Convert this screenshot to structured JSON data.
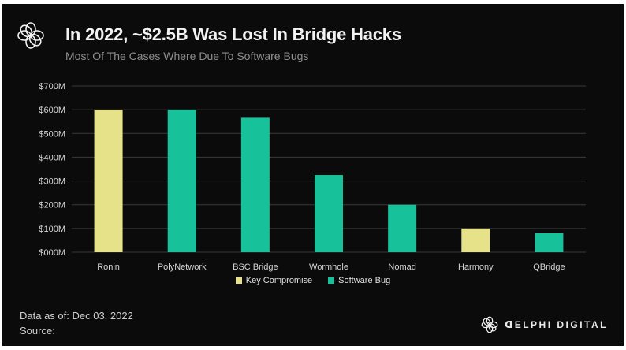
{
  "header": {
    "title": "In 2022, ~$2.5B Was Lost In Bridge Hacks",
    "subtitle": "Most Of The Cases Where Due To Software Bugs",
    "logo_icon": "delphi-flower-icon"
  },
  "footer": {
    "date_label": "Data as of: Dec 03, 2022",
    "source_label": "Source:",
    "brand_name": "DELPHI DIGITAL",
    "brand_display": "ᗡELPHI DIGITAL"
  },
  "colors": {
    "background": "#0b0b0b",
    "key_compromise": "#e5e28a",
    "software_bug": "#17c19a",
    "grid": "#3a3a3a",
    "text": "#e0e0e0"
  },
  "chart_data": {
    "type": "bar",
    "title": "In 2022, ~$2.5B Was Lost In Bridge Hacks",
    "subtitle": "Most Of The Cases Where Due To Software Bugs",
    "categories": [
      "Ronin",
      "PolyNetwork",
      "BSC Bridge",
      "Wormhole",
      "Nomad",
      "Harmony",
      "QBridge"
    ],
    "values": [
      600,
      600,
      566,
      325,
      200,
      100,
      80
    ],
    "value_unit": "$M",
    "cause": [
      "Key Compromise",
      "Software Bug",
      "Software Bug",
      "Software Bug",
      "Software Bug",
      "Key Compromise",
      "Software Bug"
    ],
    "legend": [
      {
        "name": "Key Compromise",
        "color": "#e5e28a"
      },
      {
        "name": "Software Bug",
        "color": "#17c19a"
      }
    ],
    "legend_position": "bottom-center",
    "ylim": [
      0,
      700
    ],
    "yticks": [
      0,
      100,
      200,
      300,
      400,
      500,
      600,
      700
    ],
    "ytick_labels": [
      "$000M",
      "$100M",
      "$200M",
      "$300M",
      "$400M",
      "$500M",
      "$600M",
      "$700M"
    ],
    "xlabel": "",
    "ylabel": "",
    "grid": true
  }
}
